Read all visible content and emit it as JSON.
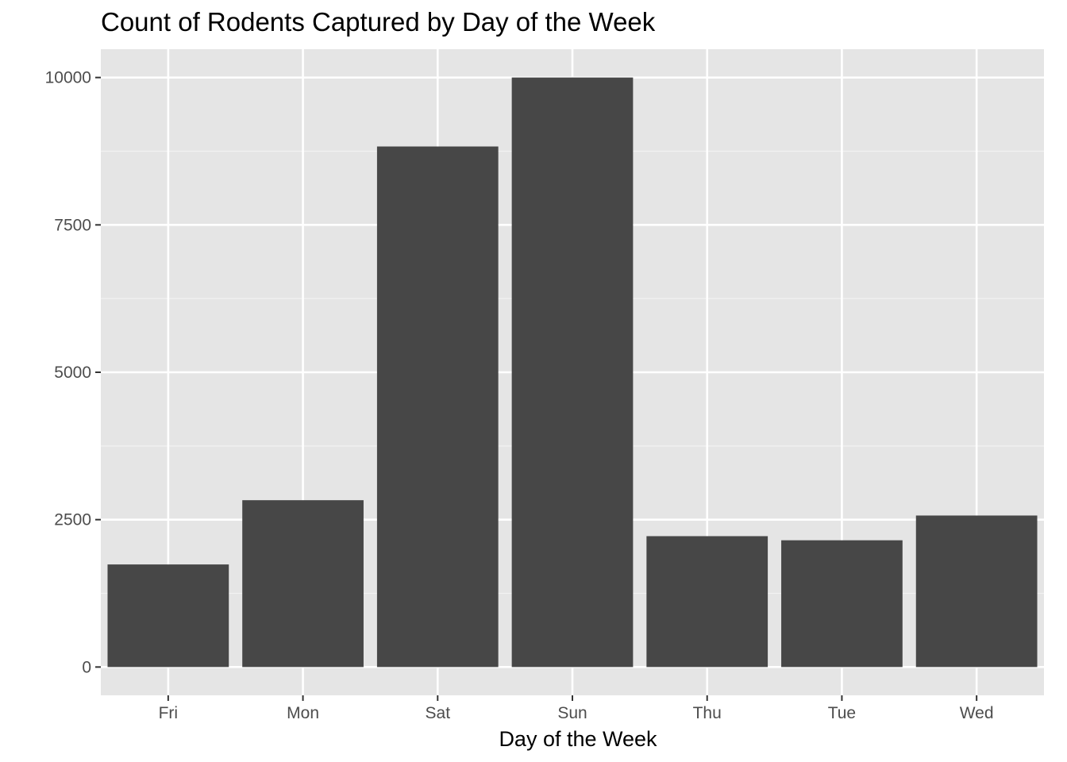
{
  "chart_data": {
    "type": "bar",
    "title": "Count of Rodents Captured by Day of the Week",
    "xlabel": "Day of the Week",
    "ylabel": "",
    "categories": [
      "Fri",
      "Mon",
      "Sat",
      "Sun",
      "Thu",
      "Tue",
      "Wed"
    ],
    "values": [
      1740,
      2830,
      8830,
      10000,
      2220,
      2150,
      2570
    ],
    "ylim": [
      -480,
      10480
    ],
    "yticks": [
      0,
      2500,
      5000,
      7500,
      10000
    ],
    "ytick_labels": [
      "0",
      "2500",
      "5000",
      "7500",
      "10000"
    ],
    "grid": true,
    "legend": "none",
    "colors": {
      "bar": "#474747",
      "panel": "#e5e5e5",
      "grid_major": "#ffffff",
      "grid_minor": "#f2f2f2",
      "tick_text": "#4d4d4d",
      "tick_mark": "#333333"
    }
  }
}
